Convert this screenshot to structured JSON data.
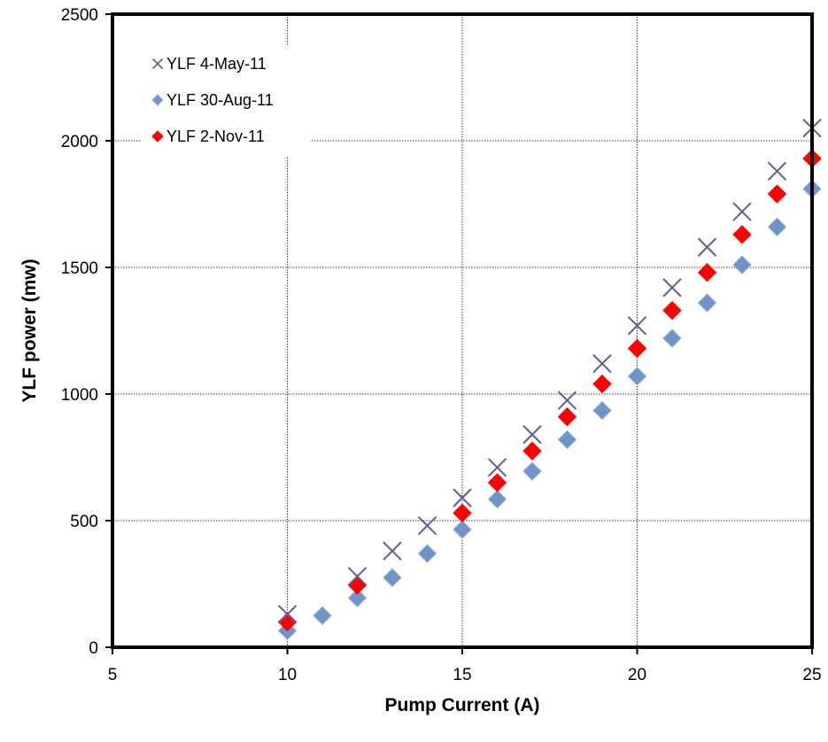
{
  "chart_data": {
    "type": "scatter",
    "xlabel": "Pump Current (A)",
    "ylabel": "YLF power (mw)",
    "xlim": [
      5,
      25
    ],
    "ylim": [
      0,
      2500
    ],
    "xticks": [
      5,
      10,
      15,
      20,
      25
    ],
    "yticks": [
      0,
      500,
      1000,
      1500,
      2000,
      2500
    ],
    "grid": true,
    "legend_position": "top-left",
    "series": [
      {
        "name": "YLF 4-May-11",
        "marker": "x",
        "color": "#6a5a8c",
        "points": [
          [
            10,
            130
          ],
          [
            12,
            280
          ],
          [
            13,
            380
          ],
          [
            14,
            480
          ],
          [
            15,
            590
          ],
          [
            16,
            710
          ],
          [
            17,
            840
          ],
          [
            18,
            975
          ],
          [
            19,
            1120
          ],
          [
            20,
            1270
          ],
          [
            21,
            1420
          ],
          [
            22,
            1580
          ],
          [
            23,
            1720
          ],
          [
            24,
            1880
          ],
          [
            25,
            2050
          ]
        ]
      },
      {
        "name": "YLF 30-Aug-11",
        "marker": "diamond",
        "color": "#6e94c8",
        "points": [
          [
            10,
            65
          ],
          [
            11,
            125
          ],
          [
            12,
            195
          ],
          [
            13,
            275
          ],
          [
            14,
            370
          ],
          [
            15,
            465
          ],
          [
            16,
            585
          ],
          [
            17,
            695
          ],
          [
            18,
            820
          ],
          [
            19,
            935
          ],
          [
            20,
            1070
          ],
          [
            21,
            1220
          ],
          [
            22,
            1360
          ],
          [
            23,
            1510
          ],
          [
            24,
            1660
          ],
          [
            25,
            1810
          ]
        ]
      },
      {
        "name": "YLF 2-Nov-11",
        "marker": "diamond",
        "color": "#ff0000",
        "points": [
          [
            10,
            100
          ],
          [
            12,
            245
          ],
          [
            15,
            530
          ],
          [
            16,
            650
          ],
          [
            17,
            775
          ],
          [
            18,
            910
          ],
          [
            19,
            1040
          ],
          [
            20,
            1180
          ],
          [
            21,
            1330
          ],
          [
            22,
            1480
          ],
          [
            23,
            1630
          ],
          [
            24,
            1790
          ],
          [
            25,
            1930
          ]
        ]
      }
    ]
  }
}
